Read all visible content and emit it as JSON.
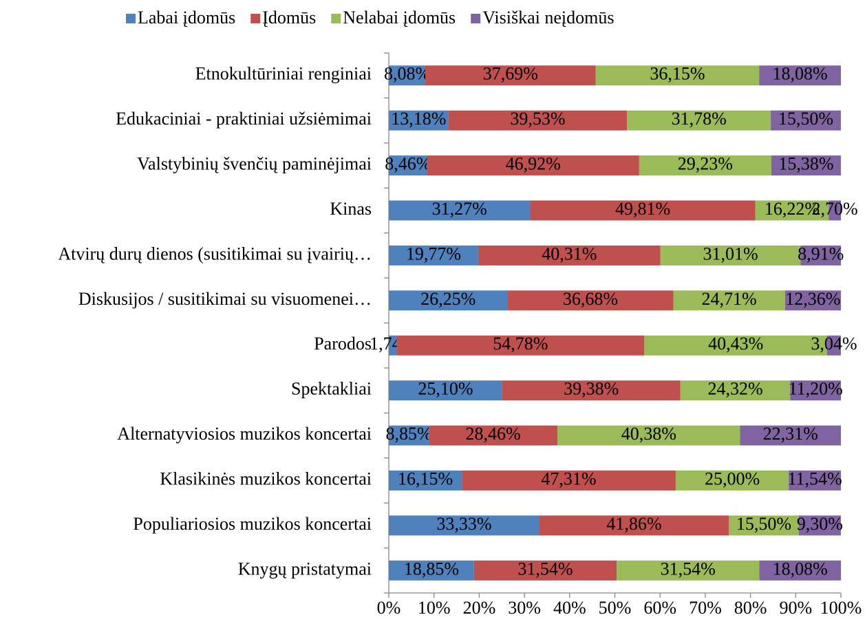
{
  "chart_data": {
    "type": "stacked_barh",
    "categories": [
      "Etnokultūriniai renginiai",
      "Edukaciniai - praktiniai užsiėmimai",
      "Valstybinių švenčių paminėjimai",
      "Kinas",
      "Atvirų durų dienos (susitikimai su įvairių…",
      "Diskusijos / susitikimai su visuomenei…",
      "Parodos",
      "Spektakliai",
      "Alternatyviosios muzikos koncertai",
      "Klasikinės muzikos koncertai",
      "Populiariosios muzikos koncertai",
      "Knygų pristatymai"
    ],
    "series": [
      {
        "name": "Labai įdomūs",
        "color": "#4f81bd",
        "values": [
          8.08,
          13.18,
          8.46,
          31.27,
          19.77,
          26.25,
          1.74,
          25.1,
          8.85,
          16.15,
          33.33,
          18.85
        ],
        "value_labels": [
          "8,08%",
          "13,18%",
          "8,46%",
          "31,27%",
          "19,77%",
          "26,25%",
          "1,74%",
          "25,10%",
          "8,85%",
          "16,15%",
          "33,33%",
          "18,85%"
        ]
      },
      {
        "name": "Įdomūs",
        "color": "#c0504d",
        "values": [
          37.69,
          39.53,
          46.92,
          49.81,
          40.31,
          36.68,
          54.78,
          39.38,
          28.46,
          47.31,
          41.86,
          31.54
        ],
        "value_labels": [
          "37,69%",
          "39,53%",
          "46,92%",
          "49,81%",
          "40,31%",
          "36,68%",
          "54,78%",
          "39,38%",
          "28,46%",
          "47,31%",
          "41,86%",
          "31,54%"
        ]
      },
      {
        "name": "Nelabai įdomūs",
        "color": "#9bbb59",
        "values": [
          36.15,
          31.78,
          29.23,
          16.22,
          31.01,
          24.71,
          40.43,
          24.32,
          40.38,
          25.0,
          15.5,
          31.54
        ],
        "value_labels": [
          "36,15%",
          "31,78%",
          "29,23%",
          "16,22%",
          "31,01%",
          "24,71%",
          "40,43%",
          "24,32%",
          "40,38%",
          "25,00%",
          "15,50%",
          "31,54%"
        ]
      },
      {
        "name": "Visiškai neįdomūs",
        "color": "#8064a2",
        "values": [
          18.08,
          15.5,
          15.38,
          2.7,
          8.91,
          12.36,
          3.04,
          11.2,
          22.31,
          11.54,
          9.3,
          18.08
        ],
        "value_labels": [
          "18,08%",
          "15,50%",
          "15,38%",
          "2,70%",
          "8,91%",
          "12,36%",
          "3,04%",
          "11,20%",
          "22,31%",
          "11,54%",
          "9,30%",
          "18,08%"
        ]
      }
    ],
    "xlim": [
      0,
      100
    ],
    "xticks": [
      {
        "value": 0,
        "label": "0%"
      },
      {
        "value": 10,
        "label": "10%"
      },
      {
        "value": 20,
        "label": "20%"
      },
      {
        "value": 30,
        "label": "30%"
      },
      {
        "value": 40,
        "label": "40%"
      },
      {
        "value": 50,
        "label": "50%"
      },
      {
        "value": 60,
        "label": "60%"
      },
      {
        "value": 70,
        "label": "70%"
      },
      {
        "value": 80,
        "label": "80%"
      },
      {
        "value": 90,
        "label": "90%"
      },
      {
        "value": 100,
        "label": "100%"
      }
    ],
    "legend": "top"
  }
}
